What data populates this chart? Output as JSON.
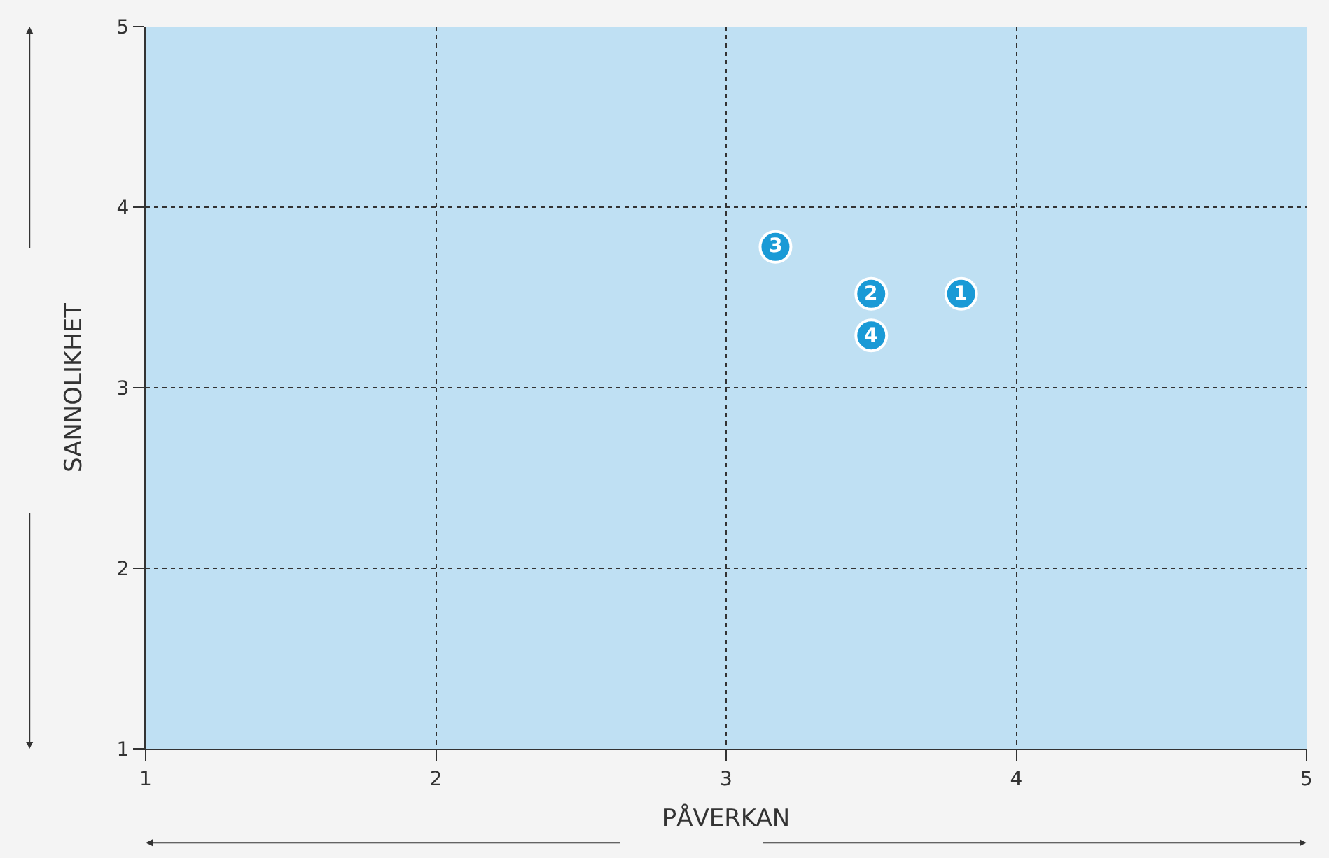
{
  "chart_data": {
    "type": "scatter",
    "xlabel": "PÅVERKAN",
    "ylabel": "SANNOLIKHET",
    "x": [
      3.81,
      3.5,
      3.17,
      3.5
    ],
    "values": [
      3.52,
      3.52,
      3.78,
      3.29
    ],
    "color": "#1a9ad6",
    "marker": "circle",
    "annotations": [
      {
        "text": "1",
        "x": 3.81,
        "y": 3.52
      },
      {
        "text": "2",
        "x": 3.5,
        "y": 3.52
      },
      {
        "text": "3",
        "x": 3.17,
        "y": 3.78
      },
      {
        "text": "4",
        "x": 3.5,
        "y": 3.29
      }
    ],
    "xlim": [
      1,
      5
    ],
    "xticks": [
      1,
      2,
      3,
      4,
      5
    ],
    "ylim": [
      1,
      5
    ],
    "yticks": [
      1,
      2,
      3,
      4,
      5
    ],
    "grid": true
  }
}
